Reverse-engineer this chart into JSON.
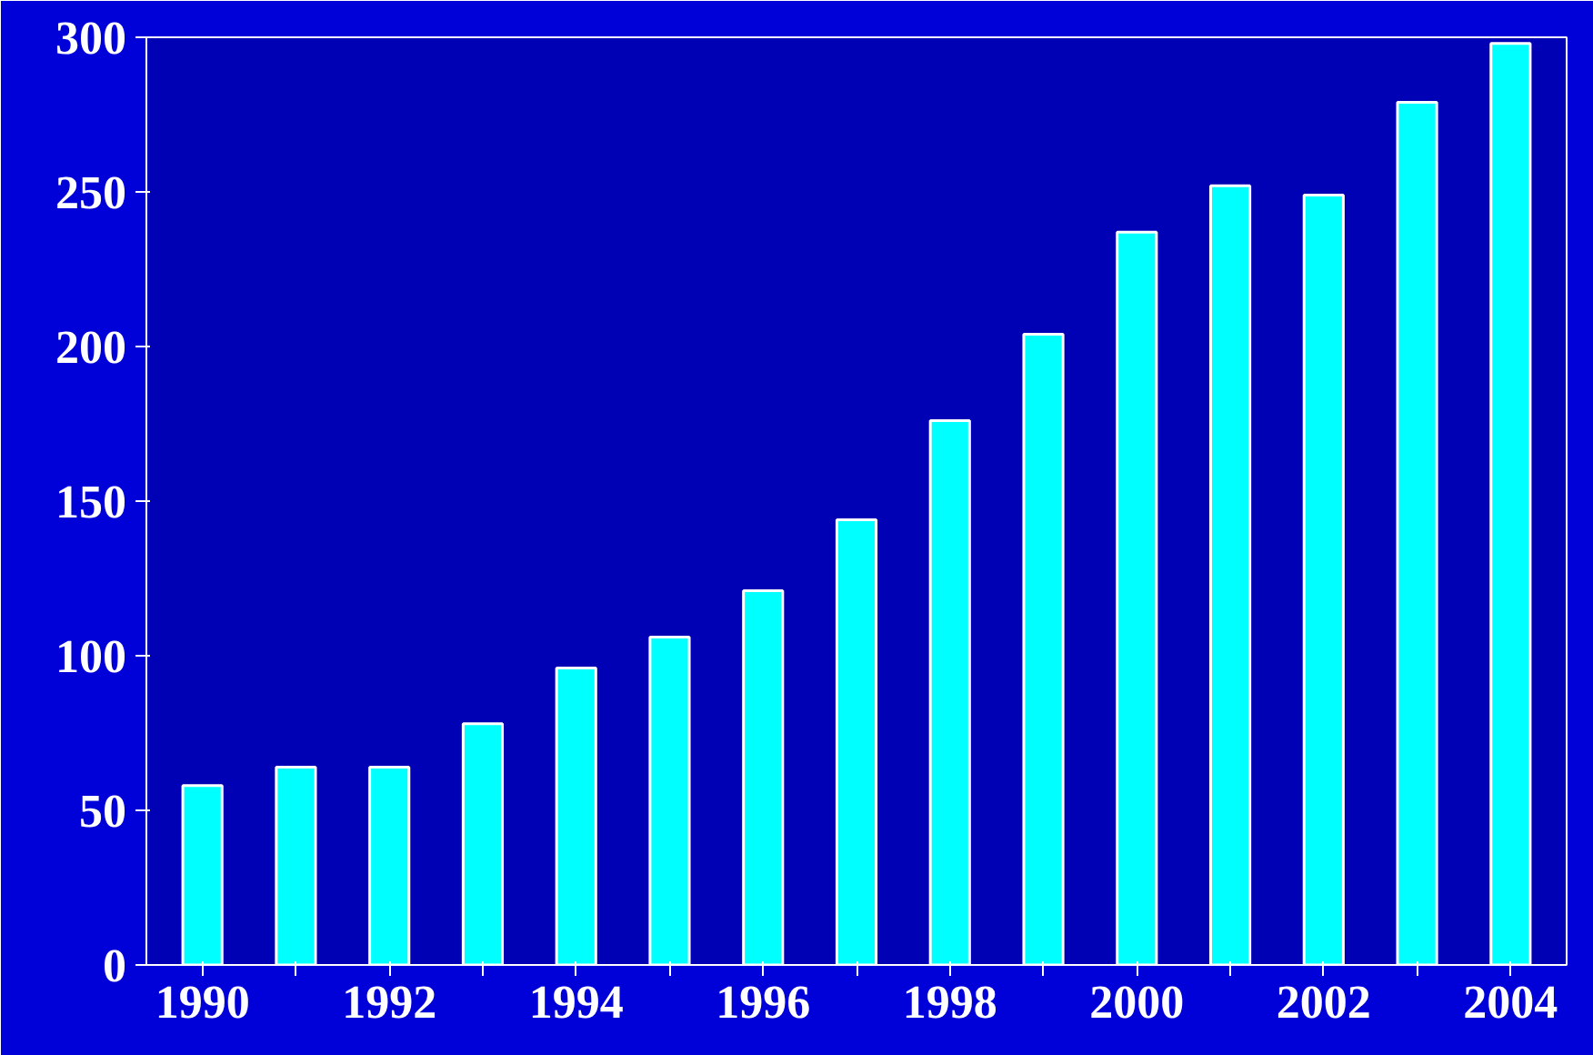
{
  "chart_data": {
    "type": "bar",
    "categories": [
      "1990",
      null,
      "1992",
      null,
      "1994",
      null,
      "1996",
      null,
      "1998",
      null,
      "2000",
      null,
      "2002",
      null,
      "2004"
    ],
    "values": [
      58,
      64,
      64,
      78,
      96,
      106,
      121,
      144,
      176,
      204,
      237,
      252,
      249,
      279,
      298
    ],
    "color": "#00ffff",
    "ylim": [
      0,
      300
    ],
    "yticks": [
      0,
      50,
      100,
      150,
      200,
      250,
      300
    ],
    "grid": false
  }
}
